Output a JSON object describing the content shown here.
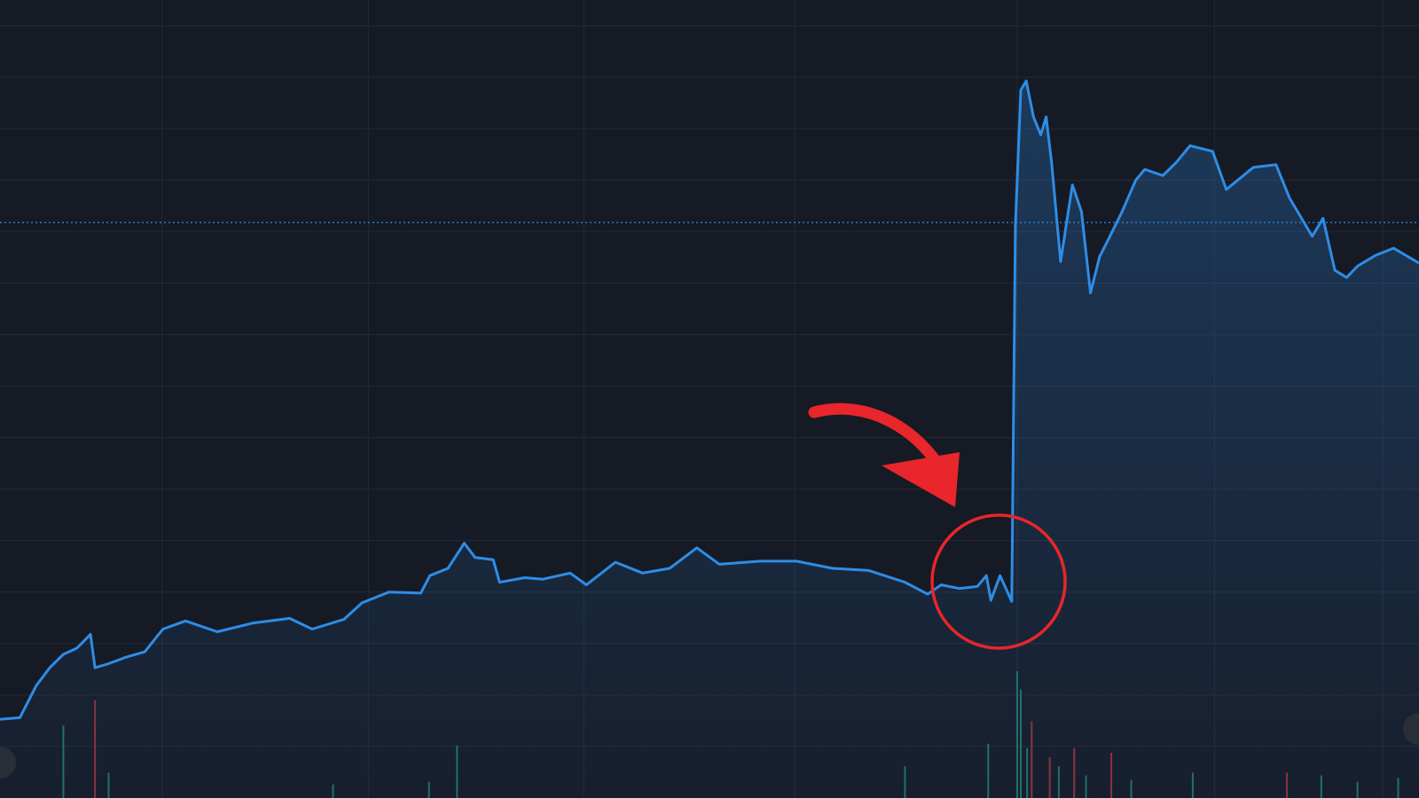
{
  "chart_data": {
    "type": "area",
    "color": "#2e8de6",
    "grid": true,
    "xlim": [
      0,
      1568
    ],
    "ylim": [
      -1,
      14.5
    ],
    "xticks": [
      179,
      407,
      645,
      878,
      1124,
      1342,
      1528
    ],
    "yticks": [
      0,
      1,
      2,
      3,
      4,
      5,
      6,
      7,
      8,
      9,
      10,
      11,
      12,
      13,
      14
    ],
    "reference_line": 10.18,
    "x": [
      0,
      22,
      40,
      55,
      70,
      85,
      100,
      105,
      120,
      140,
      160,
      180,
      205,
      240,
      280,
      320,
      345,
      380,
      400,
      430,
      465,
      475,
      495,
      513,
      525,
      545,
      552,
      580,
      600,
      630,
      648,
      680,
      710,
      740,
      770,
      795,
      840,
      880,
      920,
      960,
      1000,
      1025,
      1040,
      1060,
      1080,
      1090,
      1095,
      1105,
      1118,
      1122,
      1128,
      1134,
      1142,
      1150,
      1156,
      1162,
      1172,
      1185,
      1195,
      1205,
      1215,
      1225,
      1240,
      1255,
      1265,
      1285,
      1300,
      1315,
      1340,
      1355,
      1385,
      1410,
      1425,
      1450,
      1462,
      1475,
      1488,
      1500,
      1520,
      1540,
      1568
    ],
    "values": [
      0.53,
      0.56,
      1.18,
      1.53,
      1.79,
      1.91,
      2.18,
      1.53,
      1.61,
      1.74,
      1.84,
      2.28,
      2.44,
      2.23,
      2.4,
      2.49,
      2.28,
      2.47,
      2.79,
      3.0,
      2.98,
      3.32,
      3.46,
      3.95,
      3.67,
      3.63,
      3.19,
      3.28,
      3.25,
      3.37,
      3.14,
      3.58,
      3.37,
      3.46,
      3.86,
      3.54,
      3.6,
      3.6,
      3.46,
      3.42,
      3.19,
      2.96,
      3.14,
      3.07,
      3.11,
      3.32,
      2.84,
      3.32,
      2.82,
      10.12,
      12.75,
      12.93,
      12.23,
      11.88,
      12.23,
      11.35,
      9.42,
      10.91,
      10.39,
      8.81,
      9.51,
      9.86,
      10.39,
      11.0,
      11.21,
      11.09,
      11.35,
      11.67,
      11.56,
      10.82,
      11.25,
      11.3,
      10.65,
      9.91,
      10.26,
      9.25,
      9.11,
      9.33,
      9.54,
      9.68,
      9.39
    ],
    "volume": {
      "y2lim": [
        0,
        882
      ],
      "x": [
        70,
        105,
        120,
        368,
        474,
        505,
        1000,
        1092,
        1124,
        1128,
        1135,
        1140,
        1160,
        1170,
        1187,
        1200,
        1228,
        1250,
        1318,
        1422,
        1460,
        1500,
        1545
      ],
      "values": [
        80,
        108,
        28,
        15,
        18,
        58,
        35,
        60,
        140,
        120,
        55,
        85,
        45,
        35,
        55,
        25,
        50,
        20,
        28,
        28,
        25,
        18,
        22
      ],
      "colors": [
        "#1f6f66",
        "#8f2f35",
        "#1f6f66",
        "#1f6f66",
        "#1f6f66",
        "#1f6f66",
        "#1f6f66",
        "#1f6f66",
        "#1f6f66",
        "#1f6f66",
        "#1f6f66",
        "#8f2f35",
        "#8f2f35",
        "#1f6f66",
        "#8f2f35",
        "#1f6f66",
        "#8f2f35",
        "#1f6f66",
        "#1f6f66",
        "#8f2f35",
        "#1f6f66",
        "#1f6f66",
        "#1f6f66"
      ]
    }
  }
}
